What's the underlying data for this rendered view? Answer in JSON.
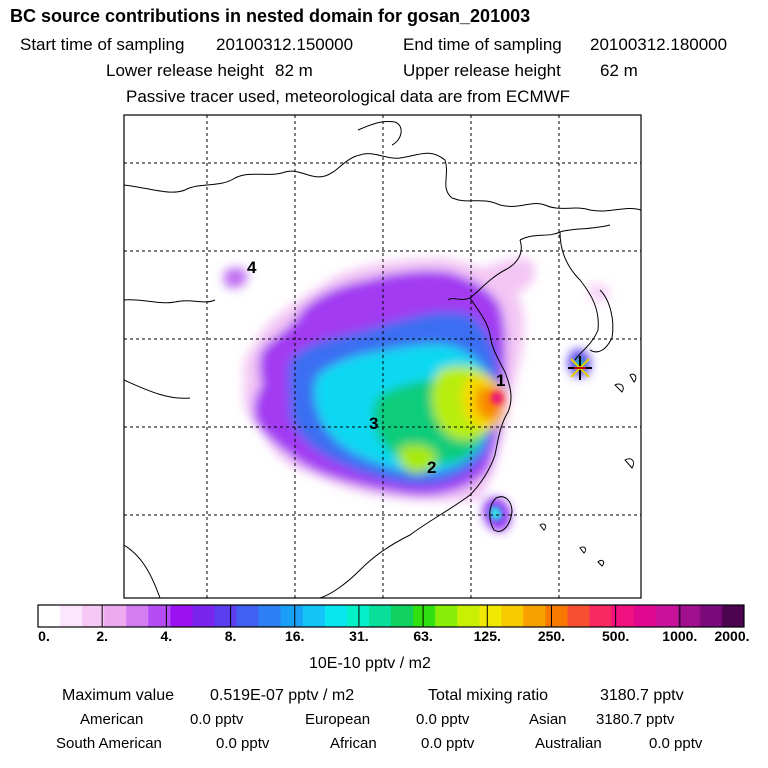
{
  "header": {
    "title": "BC  source contributions in nested domain for gosan_201003",
    "start_label": "Start time of sampling",
    "start_value": "20100312.150000",
    "end_label": "End time of sampling",
    "end_value": "20100312.180000",
    "lower_label": "Lower release height",
    "lower_value": "82 m",
    "upper_label": "Upper release height",
    "upper_value": "62 m",
    "note": "Passive tracer used, meteorological data are from ECMWF"
  },
  "map": {
    "receptor_marker": "star-marker",
    "labels": [
      "1",
      "2",
      "3",
      "4"
    ]
  },
  "colorbar": {
    "ticks": [
      "0.",
      "2.",
      "4.",
      "8.",
      "16.",
      "31.",
      "63.",
      "125.",
      "250.",
      "500.",
      "1000.",
      "2000."
    ],
    "unit": "10E-10 pptv / m2",
    "colors": [
      "#ffffff",
      "#fbe6fb",
      "#f5c8f5",
      "#eeaaee",
      "#d27ef2",
      "#b64cf3",
      "#9a12f2",
      "#7a24f0",
      "#5a3ef0",
      "#4060f2",
      "#2e7ef6",
      "#1aa0f6",
      "#14c4f6",
      "#08e6f0",
      "#04f0c8",
      "#08e09a",
      "#10d060",
      "#30e010",
      "#88ee08",
      "#c8f000",
      "#f0e800",
      "#f8c800",
      "#f8a000",
      "#f87800",
      "#f85030",
      "#f82860",
      "#f01080",
      "#e00890",
      "#c8129a",
      "#a01090",
      "#7a0a7a",
      "#4c0450"
    ]
  },
  "footer": {
    "max_label": "Maximum value",
    "max_value": "0.519E-07 pptv / m2",
    "total_label": "Total mixing ratio",
    "total_value": "3180.7 pptv",
    "american_label": "American",
    "american_value": "0.0 pptv",
    "european_label": "European",
    "european_value": "0.0 pptv",
    "asian_label": "Asian",
    "asian_value": "3180.7 pptv",
    "south_american_label": "South American",
    "south_american_value": "0.0 pptv",
    "african_label": "African",
    "african_value": "0.0 pptv",
    "australian_label": "Australian",
    "australian_value": "0.0 pptv"
  }
}
